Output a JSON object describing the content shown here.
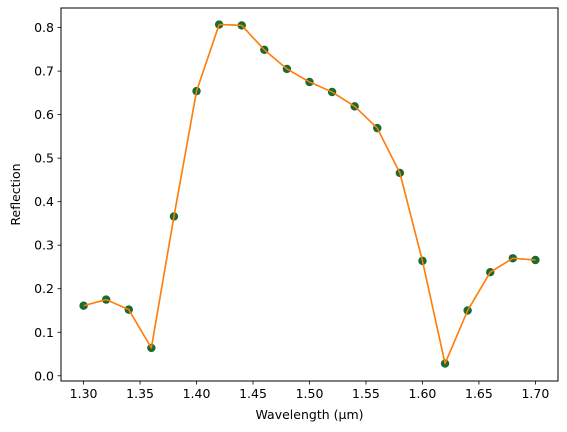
{
  "chart_data": {
    "type": "scatter",
    "title": "",
    "xlabel": "Wavelength (µm)",
    "ylabel": "Reflection",
    "xlim": [
      1.28,
      1.72
    ],
    "ylim": [
      -0.012,
      0.845
    ],
    "xticks": [
      1.3,
      1.35,
      1.4,
      1.45,
      1.5,
      1.55,
      1.6,
      1.65,
      1.7
    ],
    "xtick_labels": [
      "1.30",
      "1.35",
      "1.40",
      "1.45",
      "1.50",
      "1.55",
      "1.60",
      "1.65",
      "1.70"
    ],
    "yticks": [
      0.0,
      0.1,
      0.2,
      0.3,
      0.4,
      0.5,
      0.6,
      0.7,
      0.8
    ],
    "ytick_labels": [
      "0.0",
      "0.1",
      "0.2",
      "0.3",
      "0.4",
      "0.5",
      "0.6",
      "0.7",
      "0.8"
    ],
    "grid": false,
    "series": [
      {
        "style": "line",
        "color": "#ff7f0e",
        "x": [
          1.3,
          1.32,
          1.34,
          1.36,
          1.38,
          1.4,
          1.42,
          1.44,
          1.46,
          1.48,
          1.5,
          1.52,
          1.54,
          1.56,
          1.58,
          1.6,
          1.62,
          1.64,
          1.66,
          1.68,
          1.7
        ],
        "y": [
          0.161,
          0.175,
          0.152,
          0.064,
          0.366,
          0.654,
          0.807,
          0.805,
          0.749,
          0.705,
          0.675,
          0.652,
          0.619,
          0.569,
          0.466,
          0.264,
          0.028,
          0.15,
          0.238,
          0.27,
          0.266
        ]
      },
      {
        "style": "markers",
        "color": "#1a6b2e",
        "x": [
          1.3,
          1.32,
          1.34,
          1.36,
          1.38,
          1.4,
          1.42,
          1.44,
          1.46,
          1.48,
          1.5,
          1.52,
          1.54,
          1.56,
          1.58,
          1.6,
          1.62,
          1.64,
          1.66,
          1.68,
          1.7
        ],
        "y": [
          0.161,
          0.175,
          0.152,
          0.064,
          0.366,
          0.654,
          0.807,
          0.805,
          0.749,
          0.705,
          0.675,
          0.652,
          0.619,
          0.569,
          0.466,
          0.264,
          0.028,
          0.15,
          0.238,
          0.27,
          0.266
        ]
      }
    ]
  }
}
